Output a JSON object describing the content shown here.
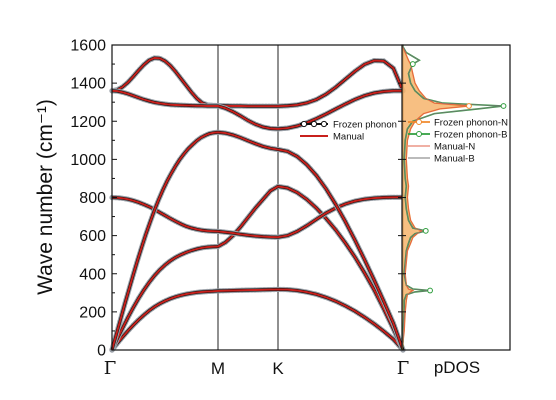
{
  "chart_data": [
    {
      "type": "line",
      "ylabel": "Wave number (cm⁻¹)",
      "ylim": [
        0,
        1600
      ],
      "yticks": [
        "0",
        "200",
        "400",
        "600",
        "800",
        "1000",
        "1200",
        "1400",
        "1600"
      ],
      "x_labels": [
        "Γ",
        "M",
        "K",
        "Γ"
      ],
      "legend": [
        "Frozen phonon",
        "Manual"
      ],
      "legend_position": "upper right",
      "colors": {
        "frozen_line": "#111111",
        "frozen_marker": "#9aa0a8",
        "manual": "#c8201c"
      },
      "series": [
        {
          "name": "Frozen phonon",
          "branch_count": 6
        },
        {
          "name": "Manual",
          "branch_count": 6
        }
      ],
      "branches": [
        {
          "segments": [
            {
              "from": "Γ",
              "to": "M",
              "values": [
                0,
                35,
                68,
                100,
                130,
                158,
                183,
                206,
                226,
                243,
                257,
                269,
                279,
                287,
                293,
                298,
                302,
                305,
                307,
                308,
                310
              ]
            },
            {
              "from": "M",
              "to": "K",
              "values": [
                310,
                311,
                312,
                313,
                314,
                315,
                316,
                317,
                318
              ]
            },
            {
              "from": "K",
              "to": "Γ",
              "values": [
                318,
                317,
                312,
                304,
                292,
                276,
                256,
                232,
                204,
                172,
                137,
                98,
                56,
                0
              ]
            }
          ]
        },
        {
          "segments": [
            {
              "from": "Γ",
              "to": "M",
              "values": [
                0,
                58,
                115,
                170,
                222,
                270,
                314,
                354,
                390,
                420,
                446,
                468,
                486,
                500,
                512,
                522,
                530,
                536,
                540,
                542,
                543
              ]
            },
            {
              "from": "M",
              "to": "K",
              "values": [
                543,
                565,
                600,
                645,
                695,
                745,
                790,
                835,
                858
              ]
            },
            {
              "from": "K",
              "to": "Γ",
              "values": [
                858,
                850,
                826,
                790,
                744,
                690,
                630,
                562,
                488,
                405,
                315,
                215,
                110,
                0
              ]
            }
          ]
        },
        {
          "segments": [
            {
              "from": "Γ",
              "to": "M",
              "values": [
                800,
                799,
                796,
                791,
                784,
                775,
                764,
                752,
                738,
                722,
                706,
                690,
                675,
                661,
                649,
                640,
                633,
                628,
                625,
                623,
                622
              ]
            },
            {
              "from": "M",
              "to": "K",
              "values": [
                622,
                618,
                613,
                607,
                602,
                598,
                595,
                593,
                592
              ]
            },
            {
              "from": "K",
              "to": "Γ",
              "values": [
                592,
                600,
                622,
                652,
                686,
                718,
                745,
                766,
                781,
                791,
                797,
                800,
                801,
                801
              ]
            }
          ]
        },
        {
          "segments": [
            {
              "from": "Γ",
              "to": "M",
              "values": [
                0,
                80,
                160,
                240,
                318,
                394,
                468,
                540,
                608,
                672,
                733,
                788,
                840,
                886,
                928,
                966,
                1000,
                1030,
                1056,
                1078,
                1098,
                1114,
                1126,
                1135,
                1140,
                1142
              ]
            },
            {
              "from": "M",
              "to": "K",
              "values": [
                1142,
                1138,
                1128,
                1114,
                1098,
                1082,
                1068,
                1058,
                1052
              ]
            },
            {
              "from": "K",
              "to": "Γ",
              "values": [
                1052,
                1042,
                1015,
                972,
                915,
                845,
                764,
                674,
                577,
                474,
                366,
                255,
                140,
                0
              ]
            }
          ]
        },
        {
          "segments": [
            {
              "from": "Γ",
              "to": "M",
              "values": [
                1360,
                1365,
                1380,
                1404,
                1434,
                1466,
                1496,
                1520,
                1532,
                1530,
                1516,
                1492,
                1460,
                1424,
                1388,
                1352,
                1320,
                1296,
                1286,
                1283,
                1282
              ]
            },
            {
              "from": "M",
              "to": "K",
              "values": [
                1282,
                1281,
                1280,
                1280,
                1279,
                1279,
                1279,
                1279,
                1279
              ]
            },
            {
              "from": "K",
              "to": "Γ",
              "values": [
                1279,
                1281,
                1286,
                1296,
                1314,
                1342,
                1378,
                1420,
                1462,
                1498,
                1518,
                1516,
                1478,
                1358
              ]
            }
          ]
        },
        {
          "segments": [
            {
              "from": "Γ",
              "to": "M",
              "values": [
                1360,
                1358,
                1352,
                1344,
                1334,
                1324,
                1314,
                1306,
                1299,
                1294,
                1290,
                1287,
                1285,
                1284,
                1283,
                1282,
                1281,
                1281,
                1280,
                1280,
                1280
              ]
            },
            {
              "from": "M",
              "to": "K",
              "values": [
                1280,
                1268,
                1250,
                1228,
                1204,
                1184,
                1170,
                1162,
                1160
              ]
            },
            {
              "from": "K",
              "to": "Γ",
              "values": [
                1160,
                1164,
                1175,
                1192,
                1214,
                1238,
                1264,
                1290,
                1314,
                1334,
                1348,
                1356,
                1360,
                1360
              ]
            }
          ]
        }
      ]
    },
    {
      "type": "line",
      "xlabel": "pDOS",
      "ylim": [
        0,
        1600
      ],
      "legend": [
        "Frozen phonon-N",
        "Frozen phonon-B",
        "Manual-N",
        "Manual-B"
      ],
      "legend_position": "upper right",
      "colors": {
        "frozen_N": "#f08a2c",
        "frozen_B": "#2f9e3e",
        "manual_N": "#e2624a",
        "manual_B": "#777777",
        "fill_N": "#f6b46c"
      },
      "series": [
        {
          "name": "Frozen phonon-N",
          "points": [
            [
              0,
              0
            ],
            [
              0.01,
              50
            ],
            [
              0.02,
              100
            ],
            [
              0.03,
              200
            ],
            [
              0.04,
              260
            ],
            [
              0.05,
              290
            ],
            [
              0.08,
              305
            ],
            [
              0.1,
              312
            ],
            [
              0.06,
              320
            ],
            [
              0.04,
              340
            ],
            [
              0.03,
              400
            ],
            [
              0.04,
              460
            ],
            [
              0.05,
              520
            ],
            [
              0.08,
              560
            ],
            [
              0.1,
              590
            ],
            [
              0.14,
              610
            ],
            [
              0.18,
              625
            ],
            [
              0.12,
              640
            ],
            [
              0.08,
              680
            ],
            [
              0.06,
              740
            ],
            [
              0.05,
              800
            ],
            [
              0.06,
              860
            ],
            [
              0.05,
              900
            ],
            [
              0.04,
              1000
            ],
            [
              0.05,
              1100
            ],
            [
              0.08,
              1160
            ],
            [
              0.12,
              1200
            ],
            [
              0.2,
              1240
            ],
            [
              0.35,
              1265
            ],
            [
              0.62,
              1280
            ],
            [
              0.3,
              1295
            ],
            [
              0.22,
              1320
            ],
            [
              0.16,
              1360
            ],
            [
              0.12,
              1400
            ],
            [
              0.1,
              1450
            ],
            [
              0.08,
              1500
            ],
            [
              0.06,
              1520
            ],
            [
              0.03,
              1560
            ],
            [
              0,
              1600
            ]
          ]
        },
        {
          "name": "Frozen phonon-B",
          "points": [
            [
              0,
              0
            ],
            [
              0.01,
              50
            ],
            [
              0.01,
              100
            ],
            [
              0.02,
              200
            ],
            [
              0.02,
              260
            ],
            [
              0.04,
              290
            ],
            [
              0.12,
              305
            ],
            [
              0.26,
              312
            ],
            [
              0.1,
              320
            ],
            [
              0.04,
              340
            ],
            [
              0.02,
              400
            ],
            [
              0.03,
              460
            ],
            [
              0.04,
              520
            ],
            [
              0.06,
              560
            ],
            [
              0.08,
              590
            ],
            [
              0.12,
              610
            ],
            [
              0.22,
              625
            ],
            [
              0.1,
              640
            ],
            [
              0.06,
              680
            ],
            [
              0.04,
              740
            ],
            [
              0.03,
              800
            ],
            [
              0.04,
              860
            ],
            [
              0.03,
              900
            ],
            [
              0.02,
              1000
            ],
            [
              0.03,
              1100
            ],
            [
              0.05,
              1160
            ],
            [
              0.1,
              1200
            ],
            [
              0.3,
              1240
            ],
            [
              0.7,
              1265
            ],
            [
              0.94,
              1280
            ],
            [
              0.38,
              1295
            ],
            [
              0.2,
              1320
            ],
            [
              0.12,
              1360
            ],
            [
              0.08,
              1400
            ],
            [
              0.06,
              1450
            ],
            [
              0.1,
              1500
            ],
            [
              0.16,
              1520
            ],
            [
              0.04,
              1560
            ],
            [
              0,
              1600
            ]
          ]
        },
        {
          "name": "Manual-N",
          "same_as": "Frozen phonon-N"
        },
        {
          "name": "Manual-B",
          "same_as": "Frozen phonon-B"
        }
      ]
    }
  ]
}
